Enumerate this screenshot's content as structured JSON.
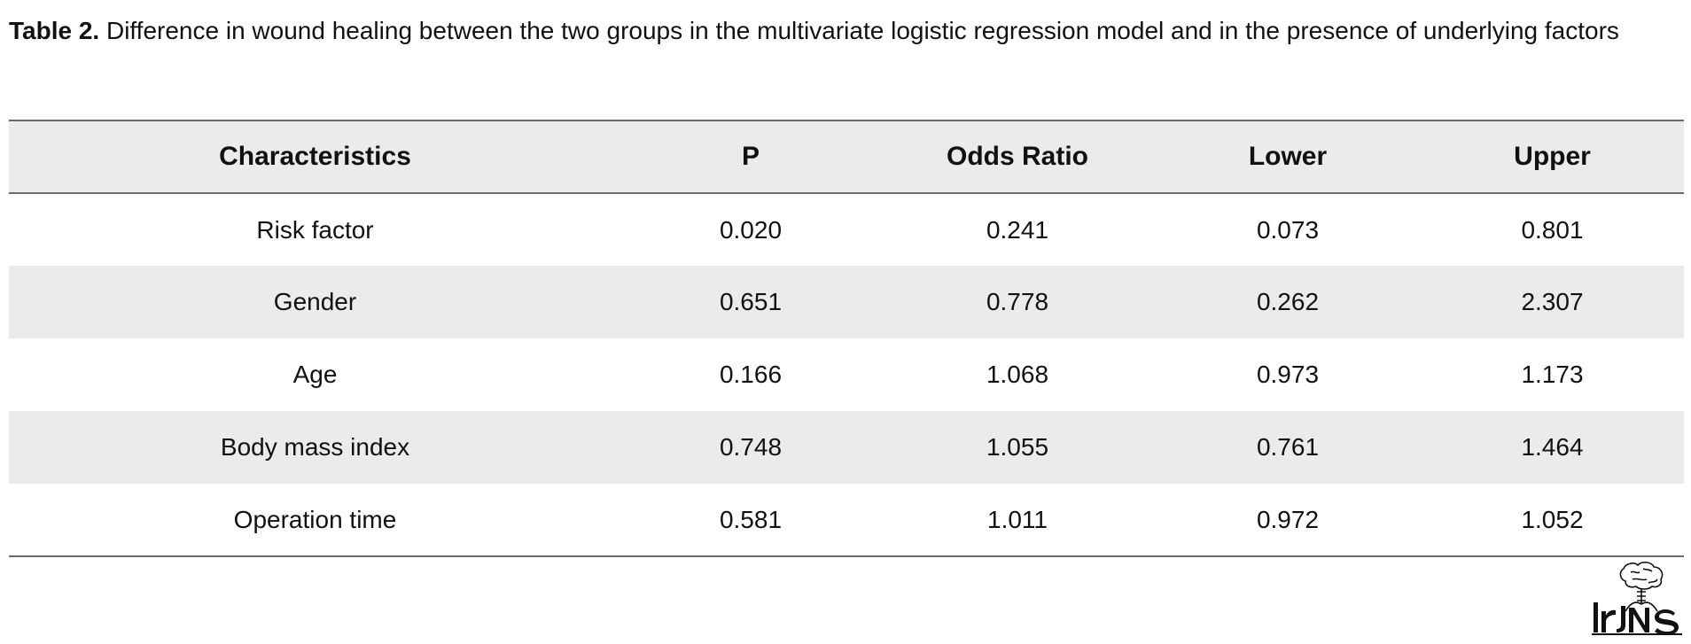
{
  "caption": {
    "label": "Table 2.",
    "text": "Difference in wound healing between the two groups in the multivariate logistic regression model and in the presence of underlying factors"
  },
  "table": {
    "headers": [
      "Characteristics",
      "P",
      "Odds Ratio",
      "Lower",
      "Upper"
    ],
    "rows": [
      [
        "Risk factor",
        "0.020",
        "0.241",
        "0.073",
        "0.801"
      ],
      [
        "Gender",
        "0.651",
        "0.778",
        "0.262",
        "2.307"
      ],
      [
        "Age",
        "0.166",
        "1.068",
        "0.973",
        "1.173"
      ],
      [
        "Body mass index",
        "0.748",
        "1.055",
        "0.761",
        "1.464"
      ],
      [
        "Operation time",
        "0.581",
        "1.011",
        "0.972",
        "1.052"
      ]
    ]
  },
  "logo": {
    "text": "IrJNS"
  }
}
